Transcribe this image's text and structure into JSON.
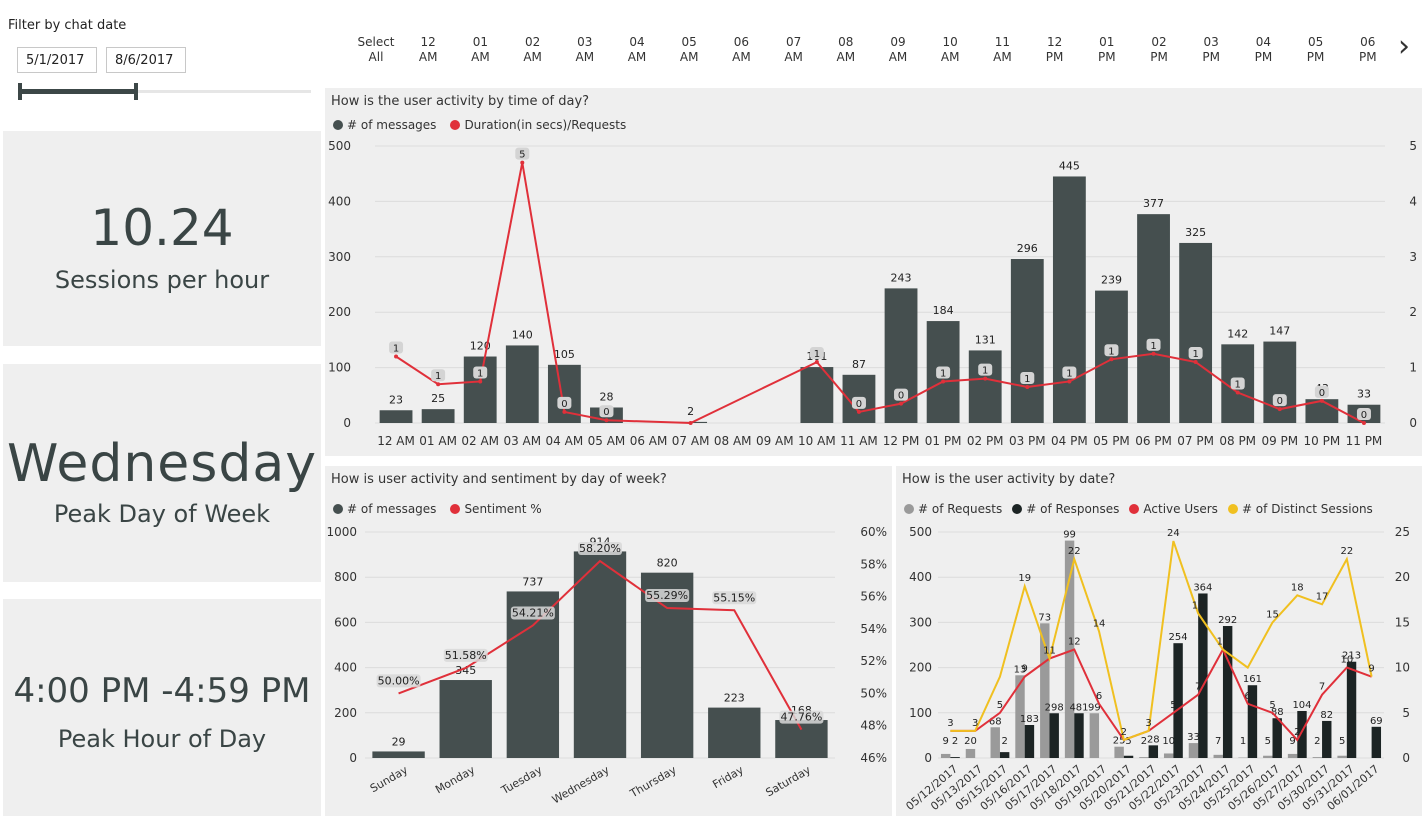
{
  "filter": {
    "label": "Filter by chat date",
    "start": "5/1/2017",
    "end": "8/6/2017"
  },
  "kpis": [
    {
      "value": "10.24",
      "label": "Sessions per hour"
    },
    {
      "value": "Wednesday",
      "label": "Peak Day of Week"
    },
    {
      "value": "4:00 PM -4:59 PM",
      "label": "Peak Hour of Day"
    }
  ],
  "time_slicer": {
    "items": [
      {
        "top": "Select",
        "bottom": "All"
      },
      {
        "top": "12",
        "bottom": "AM"
      },
      {
        "top": "01",
        "bottom": "AM"
      },
      {
        "top": "02",
        "bottom": "AM"
      },
      {
        "top": "03",
        "bottom": "AM"
      },
      {
        "top": "04",
        "bottom": "AM"
      },
      {
        "top": "05",
        "bottom": "AM"
      },
      {
        "top": "06",
        "bottom": "AM"
      },
      {
        "top": "07",
        "bottom": "AM"
      },
      {
        "top": "08",
        "bottom": "AM"
      },
      {
        "top": "09",
        "bottom": "AM"
      },
      {
        "top": "10",
        "bottom": "AM"
      },
      {
        "top": "11",
        "bottom": "AM"
      },
      {
        "top": "12",
        "bottom": "PM"
      },
      {
        "top": "01",
        "bottom": "PM"
      },
      {
        "top": "02",
        "bottom": "PM"
      },
      {
        "top": "03",
        "bottom": "PM"
      },
      {
        "top": "04",
        "bottom": "PM"
      },
      {
        "top": "05",
        "bottom": "PM"
      },
      {
        "top": "06",
        "bottom": "PM"
      }
    ],
    "next_icon": "chevron-right-icon"
  },
  "colors": {
    "bar": "#454f4f",
    "line": "#e0303a",
    "requests": "#9a9a9a",
    "responses": "#1c2424",
    "sessions": "#f0c020",
    "panel": "#efefef"
  },
  "chart_data": [
    {
      "type": "bar",
      "title": "How is the user activity by time of day?",
      "legend": [
        "# of messages",
        "Duration(in secs)/Requests"
      ],
      "categories": [
        "12 AM",
        "01 AM",
        "02 AM",
        "03 AM",
        "04 AM",
        "05 AM",
        "06 AM",
        "07 AM",
        "08 AM",
        "09 AM",
        "10 AM",
        "11 AM",
        "12 PM",
        "01 PM",
        "02 PM",
        "03 PM",
        "04 PM",
        "05 PM",
        "06 PM",
        "07 PM",
        "08 PM",
        "09 PM",
        "10 PM",
        "11 PM"
      ],
      "series": [
        {
          "name": "# of messages",
          "values": [
            23,
            25,
            120,
            140,
            105,
            28,
            null,
            2,
            null,
            null,
            101,
            87,
            243,
            184,
            131,
            296,
            445,
            239,
            377,
            325,
            142,
            147,
            43,
            33
          ],
          "labels": [
            "23",
            "25",
            "120",
            "140",
            "105",
            "28",
            "",
            "2",
            "",
            "",
            "101",
            "87",
            "243",
            "184",
            "131",
            "296",
            "445",
            "239",
            "377",
            "325",
            "142",
            "147",
            "43",
            "33"
          ]
        },
        {
          "name": "Duration(in secs)/Requests",
          "values": [
            1.2,
            0.7,
            0.75,
            4.7,
            0.2,
            0.05,
            null,
            0,
            null,
            null,
            1.1,
            0.2,
            0.35,
            0.75,
            0.8,
            0.65,
            0.75,
            1.15,
            1.25,
            1.1,
            0.55,
            0.25,
            0.4,
            0
          ],
          "labels": [
            "1",
            "1",
            "1",
            "5",
            "0",
            "0",
            "",
            "",
            "",
            "",
            "1",
            "0",
            "0",
            "1",
            "1",
            "1",
            "1",
            "1",
            "1",
            "1",
            "1",
            "0",
            "0",
            "0"
          ]
        }
      ],
      "ylim": [
        0,
        500
      ],
      "y2lim": [
        0,
        5
      ],
      "yticks": [
        "500",
        "400",
        "300",
        "200",
        "100",
        "0"
      ],
      "y2ticks": [
        "5",
        "4",
        "3",
        "2",
        "1",
        "0"
      ]
    },
    {
      "type": "bar",
      "title": "How is user activity and sentiment by day of week?",
      "legend": [
        "# of messages",
        "Sentiment %"
      ],
      "categories": [
        "Sunday",
        "Monday",
        "Tuesday",
        "Wednesday",
        "Thursday",
        "Friday",
        "Saturday"
      ],
      "series": [
        {
          "name": "# of messages",
          "values": [
            29,
            345,
            737,
            914,
            820,
            223,
            168
          ],
          "labels": [
            "29",
            "345",
            "737",
            "914",
            "820",
            "223",
            "168"
          ]
        },
        {
          "name": "Sentiment %",
          "values": [
            50.0,
            51.58,
            54.21,
            58.2,
            55.29,
            55.15,
            47.76
          ],
          "labels": [
            "50.00%",
            "51.58%",
            "54.21%",
            "58.20%",
            "55.29%",
            "55.15%",
            "47.76%"
          ]
        }
      ],
      "ylim": [
        0,
        1000
      ],
      "y2lim": [
        46,
        60
      ],
      "yticks": [
        "1000",
        "800",
        "600",
        "400",
        "200",
        "0"
      ],
      "y2ticks": [
        "60%",
        "58%",
        "56%",
        "54%",
        "52%",
        "50%",
        "48%",
        "46%"
      ]
    },
    {
      "type": "bar",
      "title": "How is the user activity by date?",
      "legend": [
        "# of Requests",
        "# of Responses",
        "Active Users",
        "# of Distinct Sessions"
      ],
      "categories": [
        "05/12/2017",
        "05/13/2017",
        "05/15/2017",
        "05/16/2017",
        "05/17/2017",
        "05/18/2017",
        "05/19/2017",
        "05/20/2017",
        "05/21/2017",
        "05/22/2017",
        "05/23/2017",
        "05/24/2017",
        "05/25/2017",
        "05/26/2017",
        "05/27/2017",
        "05/30/2017",
        "05/31/2017",
        "06/01/2017"
      ],
      "series": [
        {
          "name": "# of Requests",
          "values": [
            9,
            20,
            68,
            183,
            298,
            481,
            99,
            25,
            2,
            10,
            33,
            7,
            1,
            5,
            9,
            2,
            5,
            null
          ]
        },
        {
          "name": "# of Responses",
          "values": [
            2,
            null,
            13,
            73,
            99,
            99,
            null,
            5,
            28,
            254,
            364,
            292,
            161,
            88,
            104,
            82,
            213,
            69
          ]
        },
        {
          "name": "Active Users",
          "values": [
            3,
            3,
            5,
            9,
            11,
            12,
            6,
            2,
            3,
            5,
            7,
            12,
            6,
            5,
            2,
            7,
            10,
            9
          ]
        },
        {
          "name": "# of Distinct Sessions",
          "values": [
            3,
            3,
            9,
            19,
            11,
            22,
            14,
            2,
            3,
            24,
            16,
            12,
            10,
            15,
            18,
            17,
            22,
            9
          ]
        }
      ],
      "bar_labels": [
        "9",
        "2",
        "20",
        "68",
        "2",
        "13",
        "183",
        "73",
        "298",
        "99",
        "481",
        "99",
        "25",
        "5",
        "2",
        "28",
        "10",
        "254",
        "33",
        "364",
        "7",
        "292",
        "1",
        "161",
        "5",
        "88",
        "9",
        "104",
        "2",
        "82",
        "5",
        "213",
        "69"
      ],
      "line_labels": [
        "3",
        "3",
        "5",
        "9",
        "11",
        "12",
        "6",
        "2",
        "3",
        "5",
        "7",
        "12",
        "6",
        "5",
        "2",
        "7",
        "10",
        "9",
        "19",
        "22",
        "14",
        "24",
        "16",
        "15",
        "18",
        "17",
        "22"
      ],
      "ylim": [
        0,
        500
      ],
      "y2lim": [
        0,
        25
      ],
      "yticks": [
        "500",
        "400",
        "300",
        "200",
        "100",
        "0"
      ],
      "y2ticks": [
        "25",
        "20",
        "15",
        "10",
        "5",
        "0"
      ]
    }
  ]
}
